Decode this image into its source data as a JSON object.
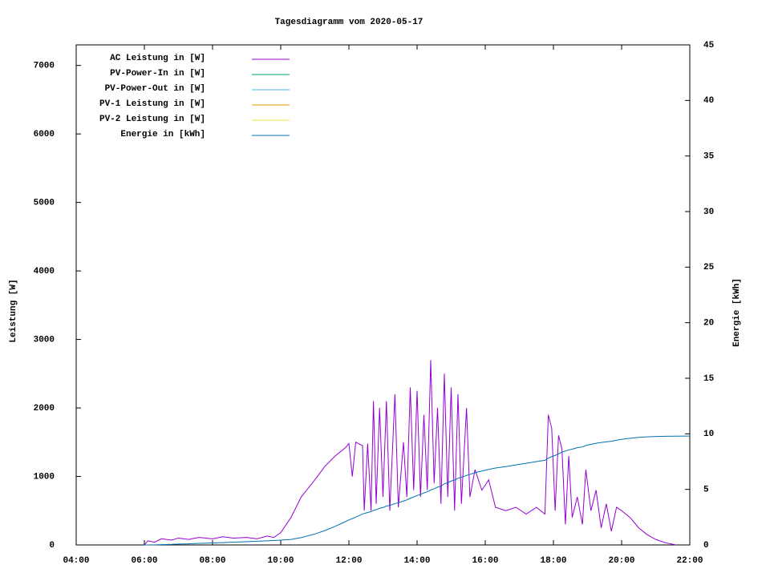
{
  "chart_data": {
    "type": "line",
    "title": "Tagesdiagramm vom 2020-05-17",
    "ylabel": "Leistung [W]",
    "y2label": "Energie [kWh]",
    "legend": "top-left",
    "x": [
      6.0,
      6.1,
      6.3,
      6.5,
      6.8,
      7.0,
      7.3,
      7.6,
      8.0,
      8.3,
      8.6,
      9.0,
      9.3,
      9.6,
      9.8,
      10.0,
      10.3,
      10.6,
      11.0,
      11.3,
      11.6,
      11.9,
      12.0,
      12.1,
      12.2,
      12.4,
      12.45,
      12.55,
      12.65,
      12.72,
      12.8,
      12.9,
      13.0,
      13.1,
      13.2,
      13.35,
      13.45,
      13.6,
      13.7,
      13.8,
      13.9,
      14.0,
      14.1,
      14.2,
      14.3,
      14.4,
      14.5,
      14.6,
      14.7,
      14.8,
      14.9,
      15.0,
      15.1,
      15.2,
      15.3,
      15.45,
      15.55,
      15.7,
      15.9,
      16.1,
      16.3,
      16.6,
      16.9,
      17.2,
      17.5,
      17.75,
      17.85,
      17.95,
      18.05,
      18.15,
      18.25,
      18.35,
      18.45,
      18.55,
      18.7,
      18.85,
      18.95,
      19.1,
      19.25,
      19.4,
      19.55,
      19.7,
      19.85,
      20.0,
      20.25,
      20.5,
      20.75,
      21.0,
      21.3,
      21.6,
      22.0
    ],
    "series": [
      {
        "name": "AC Leistung in [W]",
        "color": "#9400d3",
        "values": [
          0,
          60,
          40,
          90,
          70,
          100,
          80,
          110,
          90,
          120,
          100,
          110,
          90,
          130,
          110,
          180,
          400,
          700,
          950,
          1150,
          1300,
          1420,
          1480,
          1000,
          1500,
          1450,
          500,
          1480,
          500,
          2100,
          600,
          2000,
          700,
          2100,
          500,
          2200,
          550,
          1500,
          700,
          2300,
          800,
          2250,
          700,
          1900,
          800,
          2700,
          900,
          2000,
          600,
          2500,
          700,
          2300,
          500,
          2200,
          600,
          2000,
          700,
          1100,
          800,
          950,
          550,
          500,
          550,
          450,
          550,
          450,
          1900,
          1700,
          500,
          1600,
          1400,
          300,
          1300,
          400,
          700,
          300,
          1100,
          500,
          800,
          250,
          600,
          200,
          550,
          500,
          400,
          250,
          150,
          80,
          30,
          0,
          null
        ]
      },
      {
        "name": "PV-Power-In in [W]",
        "color": "#009e73",
        "values": [
          null,
          null,
          null,
          null,
          null,
          null,
          null,
          null,
          null,
          null,
          null,
          null,
          null,
          null,
          null,
          null,
          null,
          null,
          null,
          null,
          null,
          null,
          null,
          null,
          null,
          null,
          null,
          null,
          null,
          null,
          null,
          null,
          null,
          null,
          null,
          null,
          null,
          null,
          null,
          null,
          null,
          null,
          null,
          null,
          null,
          null,
          null,
          null,
          null,
          null,
          null,
          null,
          null,
          null,
          null,
          null,
          null,
          null,
          null,
          null,
          null,
          null,
          null,
          null,
          null,
          null,
          null,
          null,
          null,
          null,
          null,
          null,
          null,
          null,
          null,
          null,
          null,
          null,
          null,
          null,
          null,
          null,
          null,
          null,
          null,
          null,
          null,
          null,
          null,
          null,
          null
        ]
      },
      {
        "name": "PV-Power-Out in [W]",
        "color": "#56b4e9",
        "values": [
          null,
          null,
          null,
          null,
          null,
          null,
          null,
          null,
          null,
          null,
          null,
          null,
          null,
          null,
          null,
          null,
          null,
          null,
          null,
          null,
          null,
          null,
          null,
          null,
          null,
          null,
          null,
          null,
          null,
          null,
          null,
          null,
          null,
          null,
          null,
          null,
          null,
          null,
          null,
          null,
          null,
          null,
          null,
          null,
          null,
          null,
          null,
          null,
          null,
          null,
          null,
          null,
          null,
          null,
          null,
          null,
          null,
          null,
          null,
          null,
          null,
          null,
          null,
          null,
          null,
          null,
          null,
          null,
          null,
          null,
          null,
          null,
          null,
          null,
          null,
          null,
          null,
          null,
          null,
          null,
          null,
          null,
          null,
          null,
          null,
          null,
          null,
          null,
          null,
          null,
          null
        ]
      },
      {
        "name": "PV-1 Leistung in [W]",
        "color": "#e69f00",
        "values": [
          null,
          null,
          null,
          null,
          null,
          null,
          null,
          null,
          null,
          null,
          null,
          null,
          null,
          null,
          null,
          null,
          null,
          null,
          null,
          null,
          null,
          null,
          null,
          null,
          null,
          null,
          null,
          null,
          null,
          null,
          null,
          null,
          null,
          null,
          null,
          null,
          null,
          null,
          null,
          null,
          null,
          null,
          null,
          null,
          null,
          null,
          null,
          null,
          null,
          null,
          null,
          null,
          null,
          null,
          null,
          null,
          null,
          null,
          null,
          null,
          null,
          null,
          null,
          null,
          null,
          null,
          null,
          null,
          null,
          null,
          null,
          null,
          null,
          null,
          null,
          null,
          null,
          null,
          null,
          null,
          null,
          null,
          null,
          null,
          null,
          null,
          null,
          null,
          null,
          null,
          null
        ]
      },
      {
        "name": "PV-2 Leistung in [W]",
        "color": "#f0e442",
        "values": [
          null,
          null,
          null,
          null,
          null,
          null,
          null,
          null,
          null,
          null,
          null,
          null,
          null,
          null,
          null,
          null,
          null,
          null,
          null,
          null,
          null,
          null,
          null,
          null,
          null,
          null,
          null,
          null,
          null,
          null,
          null,
          null,
          null,
          null,
          null,
          null,
          null,
          null,
          null,
          null,
          null,
          null,
          null,
          null,
          null,
          null,
          null,
          null,
          null,
          null,
          null,
          null,
          null,
          null,
          null,
          null,
          null,
          null,
          null,
          null,
          null,
          null,
          null,
          null,
          null,
          null,
          null,
          null,
          null,
          null,
          null,
          null,
          null,
          null,
          null,
          null,
          null,
          null,
          null,
          null,
          null,
          null,
          null,
          null,
          null,
          null,
          null,
          null,
          null,
          null,
          null
        ]
      },
      {
        "name": "Energie in [kWh]",
        "color": "#0072b2",
        "axis": "y2",
        "values": [
          0,
          0,
          0.01,
          0.03,
          0.05,
          0.08,
          0.1,
          0.14,
          0.18,
          0.21,
          0.25,
          0.29,
          0.33,
          0.37,
          0.4,
          0.43,
          0.5,
          0.66,
          0.98,
          1.3,
          1.68,
          2.1,
          2.25,
          2.37,
          2.5,
          2.78,
          2.83,
          2.92,
          3.0,
          3.1,
          3.17,
          3.3,
          3.37,
          3.5,
          3.56,
          3.72,
          3.8,
          3.95,
          4.05,
          4.2,
          4.32,
          4.45,
          4.55,
          4.68,
          4.78,
          4.95,
          5.05,
          5.2,
          5.3,
          5.5,
          5.6,
          5.75,
          5.85,
          6.0,
          6.1,
          6.25,
          6.35,
          6.5,
          6.65,
          6.8,
          6.92,
          7.05,
          7.2,
          7.35,
          7.5,
          7.62,
          7.8,
          7.95,
          8.05,
          8.2,
          8.35,
          8.45,
          8.55,
          8.62,
          8.75,
          8.82,
          8.95,
          9.05,
          9.15,
          9.22,
          9.28,
          9.33,
          9.42,
          9.5,
          9.6,
          9.68,
          9.73,
          9.76,
          9.78,
          9.79,
          9.8
        ]
      }
    ],
    "xlim": [
      4,
      22
    ],
    "xticks": [
      {
        "value": 4,
        "label": "04:00"
      },
      {
        "value": 6,
        "label": "06:00"
      },
      {
        "value": 8,
        "label": "08:00"
      },
      {
        "value": 10,
        "label": "10:00"
      },
      {
        "value": 12,
        "label": "12:00"
      },
      {
        "value": 14,
        "label": "14:00"
      },
      {
        "value": 16,
        "label": "16:00"
      },
      {
        "value": 18,
        "label": "18:00"
      },
      {
        "value": 20,
        "label": "20:00"
      },
      {
        "value": 22,
        "label": "22:00"
      }
    ],
    "ylim": [
      0,
      7300
    ],
    "yticks": [
      0,
      1000,
      2000,
      3000,
      4000,
      5000,
      6000,
      7000
    ],
    "y2lim": [
      0,
      45
    ],
    "y2ticks": [
      0,
      5,
      10,
      15,
      20,
      25,
      30,
      35,
      40,
      45
    ]
  }
}
